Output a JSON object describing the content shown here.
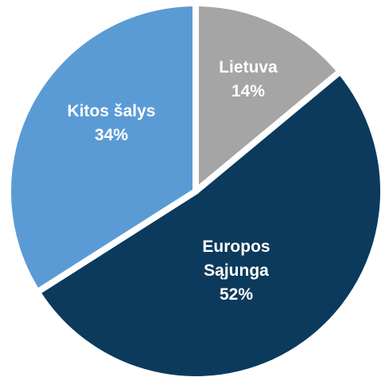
{
  "chart_data": {
    "type": "pie",
    "categories": [
      "Lietuva",
      "Europos Sąjunga",
      "Kitos šalys"
    ],
    "values": [
      14,
      52,
      34
    ],
    "value_labels": [
      "14%",
      "52%",
      "34%"
    ],
    "colors": [
      "#a5a5a5",
      "#0b3a5c",
      "#5b9bd5"
    ],
    "start_angle": 0,
    "direction": "clockwise"
  }
}
